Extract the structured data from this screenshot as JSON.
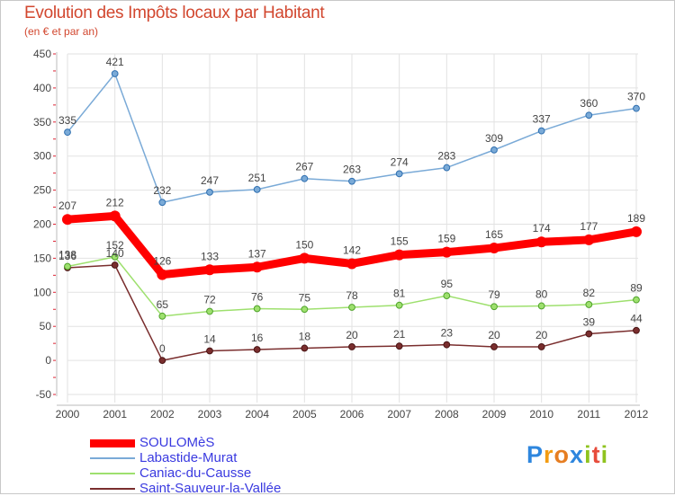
{
  "header": {
    "title": "Evolution des Impôts locaux par Habitant",
    "subtitle": "(en € et par an)"
  },
  "logo": {
    "text": "Proxiti",
    "letters": [
      {
        "ch": "P",
        "color": "#2e86de"
      },
      {
        "ch": "r",
        "color": "#f39c12"
      },
      {
        "ch": "o",
        "color": "#e67e22"
      },
      {
        "ch": "x",
        "color": "#2e86de"
      },
      {
        "ch": "i",
        "color": "#8fc31f"
      },
      {
        "ch": "t",
        "color": "#e74c3c"
      },
      {
        "ch": "i",
        "color": "#8fc31f"
      }
    ]
  },
  "chart_data": {
    "type": "line",
    "title": "Evolution des Impôts locaux par Habitant",
    "subtitle": "(en € et par an)",
    "xlabel": "",
    "ylabel": "",
    "x": [
      "2000",
      "2001",
      "2002",
      "2003",
      "2004",
      "2005",
      "2006",
      "2007",
      "2008",
      "2009",
      "2010",
      "2011",
      "2012"
    ],
    "ylim": [
      -50,
      450
    ],
    "yticks": [
      -50,
      0,
      50,
      100,
      150,
      200,
      250,
      300,
      350,
      400,
      450
    ],
    "grid": true,
    "legend_position": "bottom-left",
    "series": [
      {
        "name": "SOULOMèS",
        "color": "#ff0000",
        "values": [
          207,
          212,
          126,
          133,
          137,
          150,
          142,
          155,
          159,
          165,
          174,
          177,
          189
        ],
        "labels": [
          "207",
          "212",
          "126",
          "133",
          "137",
          "150",
          "142",
          "155",
          "159",
          "165",
          "174",
          "177",
          "189"
        ]
      },
      {
        "name": "Labastide-Murat",
        "color": "#7aaad7",
        "values": [
          335,
          421,
          232,
          247,
          251,
          267,
          263,
          274,
          283,
          309,
          337,
          360,
          370
        ],
        "labels": [
          "335",
          "421",
          "232",
          "247",
          "251",
          "267",
          "263",
          "274",
          "283",
          "309",
          "337",
          "360",
          "370"
        ]
      },
      {
        "name": "Caniac-du-Causse",
        "color": "#9ee06e",
        "values": [
          138,
          152,
          65,
          72,
          76,
          75,
          78,
          81,
          95,
          79,
          80,
          82,
          89
        ],
        "labels": [
          "138",
          "152",
          "65",
          "72",
          "76",
          "75",
          "78",
          "81",
          "95",
          "79",
          "80",
          "82",
          "89"
        ]
      },
      {
        "name": "Saint-Sauveur-la-Vallée",
        "color": "#7a2e2e",
        "values": [
          136,
          140,
          0,
          14,
          16,
          18,
          20,
          21,
          23,
          20,
          20,
          39,
          44
        ],
        "labels": [
          "136",
          "140",
          "0",
          "14",
          "16",
          "18",
          "20",
          "21",
          "23",
          "20",
          "20",
          "39",
          "44"
        ]
      }
    ]
  }
}
